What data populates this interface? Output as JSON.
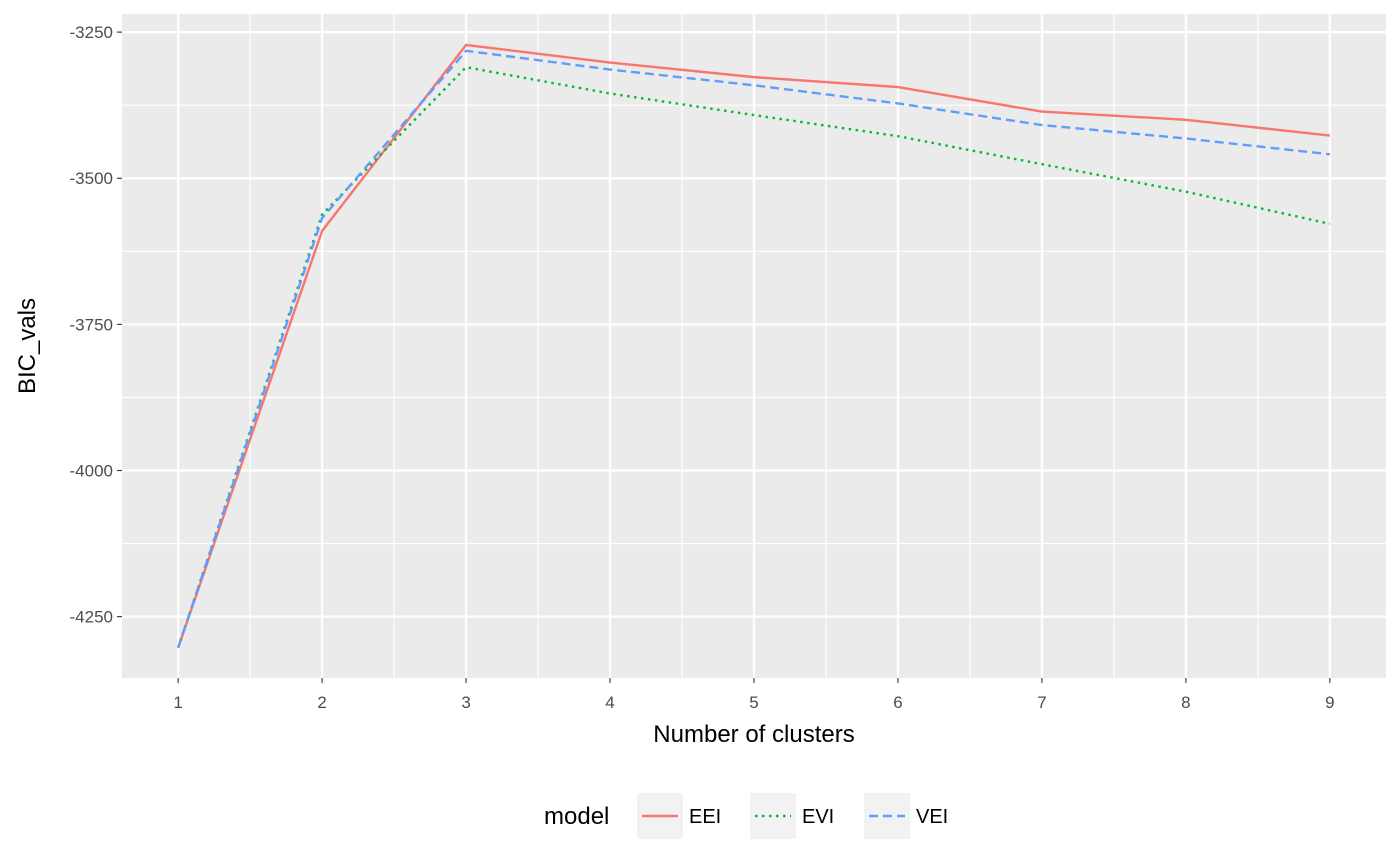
{
  "chart_data": {
    "type": "line",
    "title": "",
    "xlabel": "Number of clusters",
    "ylabel": "BIC_vals",
    "x": [
      1,
      2,
      3,
      4,
      5,
      6,
      7,
      8,
      9
    ],
    "x_ticks": [
      "1",
      "2",
      "3",
      "4",
      "5",
      "6",
      "7",
      "8",
      "9"
    ],
    "xlim": [
      0.61,
      9.39
    ],
    "y_ticks": [
      -3250,
      -3500,
      -3750,
      -4000,
      -4250
    ],
    "y_tick_labels": [
      "-3250",
      "-3500",
      "-3750",
      "-4000",
      "-4250"
    ],
    "ylim": [
      -4355,
      -3219
    ],
    "grid": true,
    "legend": {
      "title": "model",
      "position": "bottom"
    },
    "series": [
      {
        "name": "EEI",
        "color": "#F8766D",
        "linetype": "solid",
        "values": [
          -4303,
          -3590,
          -3272,
          -3302,
          -3327,
          -3344,
          -3386,
          -3400,
          -3427
        ]
      },
      {
        "name": "EVI",
        "color": "#00BA38",
        "linetype": "dotted",
        "values": [
          -4303,
          -3562,
          -3310,
          -3355,
          -3392,
          -3428,
          -3476,
          -3523,
          -3578
        ]
      },
      {
        "name": "VEI",
        "color": "#619CFF",
        "linetype": "dashed",
        "values": [
          -4303,
          -3568,
          -3282,
          -3314,
          -3341,
          -3372,
          -3409,
          -3432,
          -3459
        ]
      }
    ]
  }
}
